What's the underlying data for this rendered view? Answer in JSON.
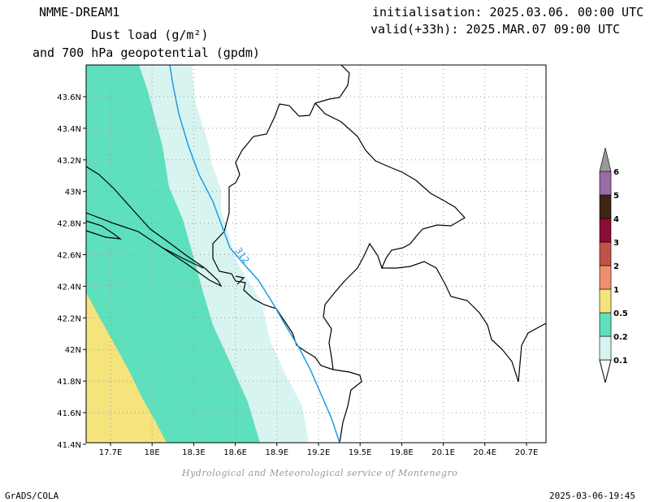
{
  "header": {
    "model": "NMME-DREAM1",
    "title_line1": "Dust load (g/m²)",
    "title_line2": "and 700 hPa geopotential (gpdm)",
    "init": "initialisation: 2025.03.06. 00:00 UTC",
    "valid": "valid(+33h): 2025.MAR.07 09:00 UTC"
  },
  "axes": {
    "lat_ticks": [
      "43.6N",
      "43.4N",
      "43.2N",
      "43N",
      "42.8N",
      "42.6N",
      "42.4N",
      "42.2N",
      "42N",
      "41.8N",
      "41.6N",
      "41.4N"
    ],
    "lon_ticks": [
      "17.7E",
      "18E",
      "18.3E",
      "18.6E",
      "18.9E",
      "19.2E",
      "19.5E",
      "19.8E",
      "20.1E",
      "20.4E",
      "20.7E"
    ]
  },
  "contour": {
    "label": "312",
    "color": "#1e9be6"
  },
  "legend": {
    "levels": [
      {
        "label": "0.1",
        "color": "#d8f4f0"
      },
      {
        "label": "0.2",
        "color": "#5ee0bd"
      },
      {
        "label": "0.5",
        "color": "#f5e37c"
      },
      {
        "label": "1",
        "color": "#ef8f6c"
      },
      {
        "label": "2",
        "color": "#c1524a"
      },
      {
        "label": "3",
        "color": "#8b0d33"
      },
      {
        "label": "4",
        "color": "#3e2617"
      },
      {
        "label": "5",
        "color": "#9a6da6"
      },
      {
        "label": "6",
        "color": "#999999"
      }
    ]
  },
  "footer": {
    "credit": "Hydrological and Meteorological service of Montenegro",
    "software": "GrADS/COLA",
    "timestamp": "2025-03-06-19:45"
  }
}
